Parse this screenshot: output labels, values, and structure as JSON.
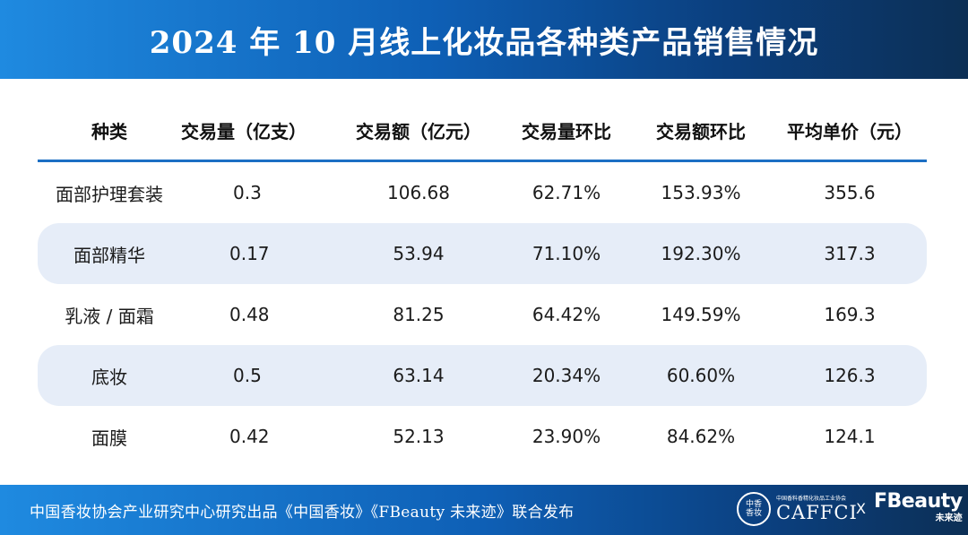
{
  "header": {
    "title": "2024 年 10 月线上化妆品各种类产品销售情况"
  },
  "table": {
    "columns": [
      "种类",
      "交易量（亿支）",
      "交易额（亿元）",
      "交易量环比",
      "交易额环比",
      "平均单价（元）"
    ],
    "rows": [
      [
        "面部护理套装",
        "0.3",
        "106.68",
        "62.71%",
        "153.93%",
        "355.6"
      ],
      [
        "面部精华",
        "0.17",
        "53.94",
        "71.10%",
        "192.30%",
        "317.3"
      ],
      [
        "乳液 / 面霜",
        "0.48",
        "81.25",
        "64.42%",
        "149.59%",
        "169.3"
      ],
      [
        "底妆",
        "0.5",
        "63.14",
        "20.34%",
        "60.60%",
        "126.3"
      ],
      [
        "面膜",
        "0.42",
        "52.13",
        "23.90%",
        "84.62%",
        "124.1"
      ]
    ]
  },
  "footer": {
    "credit": "中国香妆协会产业研究中心研究出品《中国香妆》《FBeauty 未来迹》联合发布",
    "logo1_seal": "中香\n香妆",
    "logo1_small": "中国香料香精化妆品工业协会",
    "logo1_name": "CAFFCI",
    "separator": "X",
    "logo2_name": "FBeauty",
    "logo2_sub": "未来迹"
  },
  "colors": {
    "header_blue": "#0e5fb5",
    "stripe": "#e6edf8",
    "rule": "#1c6fc4"
  }
}
